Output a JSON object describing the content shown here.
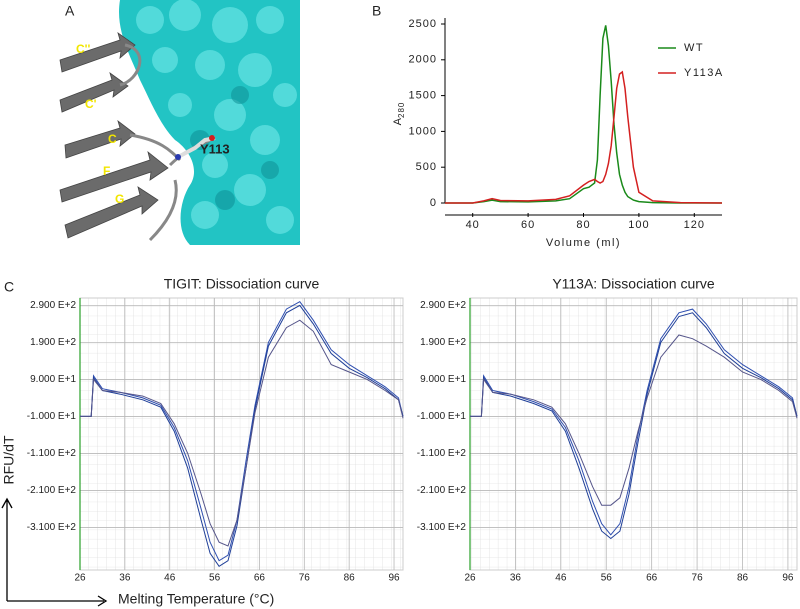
{
  "structure": {
    "panel_label": "A",
    "strand_labels": [
      "C''",
      "C'",
      "C",
      "F",
      "G"
    ],
    "residue_label": "Y113"
  },
  "figure_c": {
    "panel_label": "C",
    "y_label": "RFU/dT",
    "x_label": "Melting Temperature (°C)"
  },
  "chart_data": [
    {
      "type": "line",
      "panel_label": "B",
      "x_label": "Volume (ml)",
      "y_label": {
        "main": "A",
        "sub": "280"
      },
      "x": [
        30,
        40,
        44,
        47,
        50,
        60,
        70,
        75,
        80,
        82,
        84,
        85,
        86,
        87,
        88,
        89,
        90,
        91,
        92,
        93,
        94,
        95,
        96,
        98,
        100,
        105,
        115,
        130
      ],
      "xlim": [
        30,
        130
      ],
      "xticks": [
        40,
        60,
        80,
        100,
        120
      ],
      "ylim": [
        0,
        2500
      ],
      "yticks": [
        0,
        500,
        1000,
        1500,
        2000,
        2500
      ],
      "grid": false,
      "legend": "upper right",
      "series": [
        {
          "name": "WT",
          "color": "#1a8a1a",
          "values": [
            0,
            0,
            20,
            40,
            20,
            15,
            30,
            60,
            200,
            220,
            280,
            600,
            1500,
            2300,
            2480,
            2200,
            1700,
            1100,
            700,
            400,
            250,
            150,
            90,
            40,
            20,
            5,
            0,
            0
          ]
        },
        {
          "name": "Y113A",
          "color": "#d42020",
          "values": [
            0,
            0,
            30,
            60,
            35,
            30,
            50,
            100,
            250,
            300,
            330,
            300,
            280,
            300,
            400,
            550,
            800,
            1200,
            1600,
            1800,
            1830,
            1600,
            1200,
            500,
            150,
            30,
            5,
            0
          ]
        }
      ]
    },
    {
      "type": "line",
      "title": "TIGIT: Dissociation curve",
      "x": [
        26,
        28.5,
        29,
        31,
        35,
        40,
        44,
        47,
        50,
        53,
        55,
        57,
        59,
        61,
        63,
        65,
        68,
        72,
        75,
        78,
        82,
        86,
        90,
        94,
        97,
        98
      ],
      "xlim": [
        26,
        98
      ],
      "xticks": [
        26,
        36,
        46,
        56,
        66,
        76,
        86,
        96
      ],
      "ylim": [
        -425,
        310
      ],
      "yticks": [
        {
          "value": 290,
          "label": "2.900 E+2"
        },
        {
          "value": 190,
          "label": "1.900 E+2"
        },
        {
          "value": 90,
          "label": "9.000 E+1"
        },
        {
          "value": -10,
          "label": "-1.000 E+1"
        },
        {
          "value": -110,
          "label": "-1.100 E+2"
        },
        {
          "value": -210,
          "label": "-2.100 E+2"
        },
        {
          "value": -310,
          "label": "-3.100 E+2"
        }
      ],
      "grid": true,
      "series": [
        {
          "color": "#2f4fb0",
          "values": [
            -10,
            -10,
            100,
            65,
            55,
            40,
            20,
            -40,
            -130,
            -260,
            -350,
            -400,
            -385,
            -290,
            -130,
            20,
            190,
            280,
            300,
            250,
            170,
            130,
            100,
            70,
            40,
            -10
          ]
        },
        {
          "color": "#1f3f98",
          "values": [
            -10,
            -10,
            95,
            60,
            50,
            35,
            15,
            -50,
            -150,
            -290,
            -380,
            -415,
            -400,
            -305,
            -150,
            10,
            180,
            270,
            290,
            240,
            160,
            120,
            95,
            65,
            35,
            -10
          ]
        },
        {
          "color": "#55558a",
          "values": [
            -10,
            -10,
            90,
            60,
            55,
            45,
            25,
            -30,
            -110,
            -220,
            -300,
            -350,
            -360,
            -290,
            -150,
            0,
            150,
            230,
            250,
            220,
            130,
            110,
            90,
            60,
            35,
            -15
          ]
        }
      ]
    },
    {
      "type": "line",
      "title": "Y113A: Dissociation curve",
      "x": [
        26,
        28.5,
        29,
        31,
        35,
        40,
        44,
        47,
        50,
        53,
        55,
        57,
        59,
        61,
        63,
        65,
        68,
        72,
        75,
        78,
        82,
        86,
        90,
        94,
        97,
        98
      ],
      "xlim": [
        26,
        98
      ],
      "xticks": [
        26,
        36,
        46,
        56,
        66,
        76,
        86,
        96
      ],
      "ylim": [
        -425,
        310
      ],
      "yticks": [
        {
          "value": 290,
          "label": "2.900 E+2"
        },
        {
          "value": 190,
          "label": "1.900 E+2"
        },
        {
          "value": 90,
          "label": "9.000 E+1"
        },
        {
          "value": -10,
          "label": "-1.000 E+1"
        },
        {
          "value": -110,
          "label": "-1.100 E+2"
        },
        {
          "value": -210,
          "label": "-2.100 E+2"
        },
        {
          "value": -310,
          "label": "-3.100 E+2"
        }
      ],
      "grid": true,
      "series": [
        {
          "color": "#2f4fb0",
          "values": [
            -10,
            -10,
            100,
            60,
            50,
            30,
            10,
            -40,
            -130,
            -240,
            -300,
            -330,
            -300,
            -200,
            -60,
            60,
            200,
            270,
            280,
            240,
            170,
            130,
            100,
            70,
            40,
            -10
          ]
        },
        {
          "color": "#1f3f98",
          "values": [
            -10,
            -10,
            95,
            55,
            45,
            25,
            5,
            -50,
            -150,
            -260,
            -320,
            -340,
            -320,
            -220,
            -80,
            50,
            190,
            260,
            270,
            230,
            160,
            120,
            95,
            65,
            35,
            -10
          ]
        },
        {
          "color": "#55558a",
          "values": [
            -10,
            -10,
            90,
            55,
            50,
            35,
            15,
            -30,
            -110,
            -200,
            -250,
            -250,
            -230,
            -150,
            -50,
            40,
            150,
            210,
            200,
            180,
            150,
            110,
            90,
            60,
            30,
            -15
          ]
        }
      ]
    }
  ]
}
